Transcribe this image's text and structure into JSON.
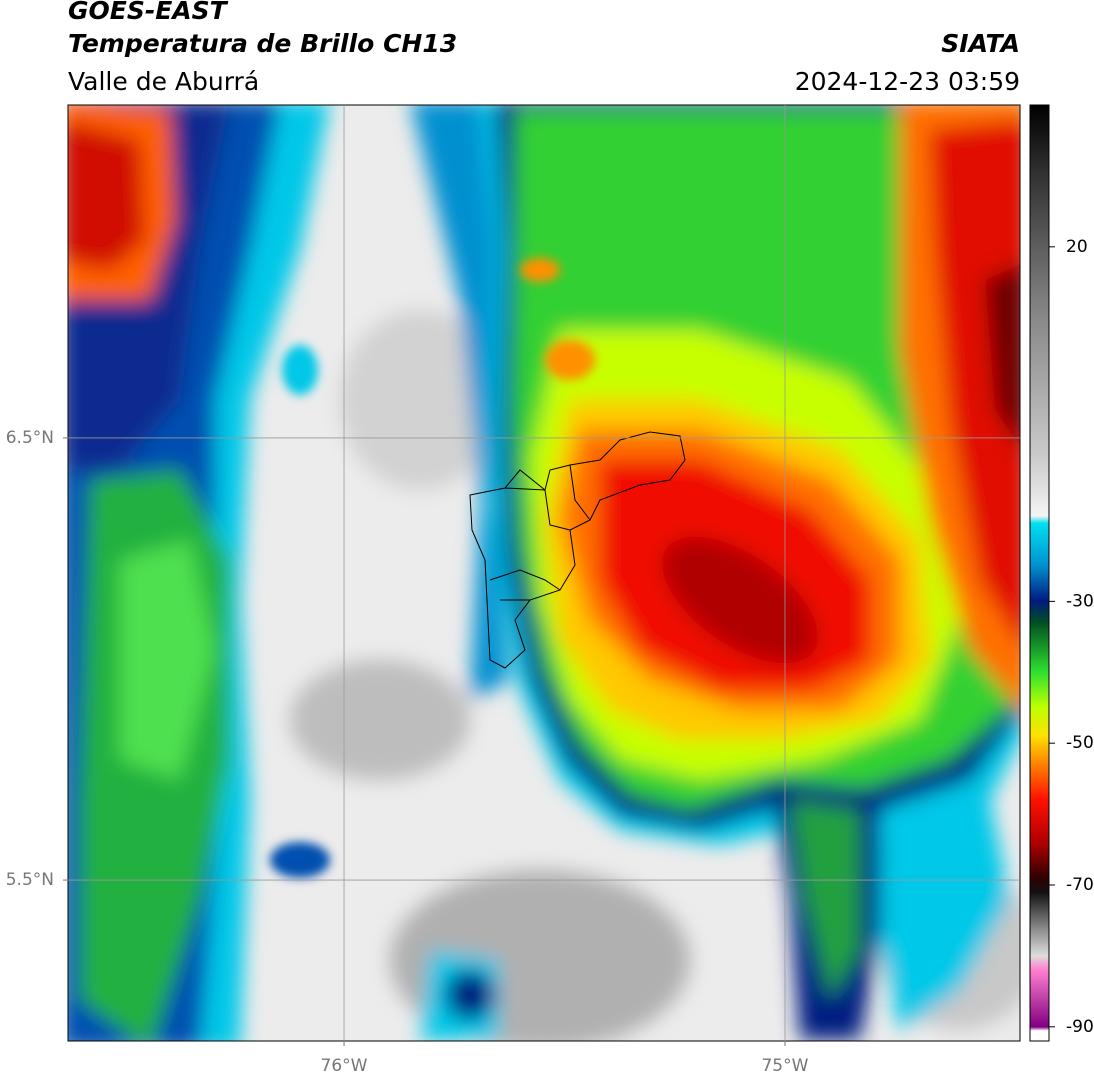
{
  "header": {
    "title": "GOES-EAST",
    "subtitle": "Temperatura de Brillo CH13",
    "region": "Valle de Aburrá",
    "source": "SIATA",
    "timestamp": "2024-12-23 03:59"
  },
  "map": {
    "xlim": [
      -76.626,
      -74.467
    ],
    "ylim": [
      5.136,
      7.253
    ],
    "xticks": [
      {
        "value": -76,
        "label": "76°W"
      },
      {
        "value": -75,
        "label": "75°W"
      }
    ],
    "yticks": [
      {
        "value": 5.5,
        "label": "5.5°N"
      },
      {
        "value": 6.5,
        "label": "6.5°N"
      }
    ],
    "grid": true
  },
  "colorbar": {
    "lim": [
      -92,
      40
    ],
    "ticks": [
      20,
      -30,
      -50,
      -70,
      -90
    ]
  }
}
